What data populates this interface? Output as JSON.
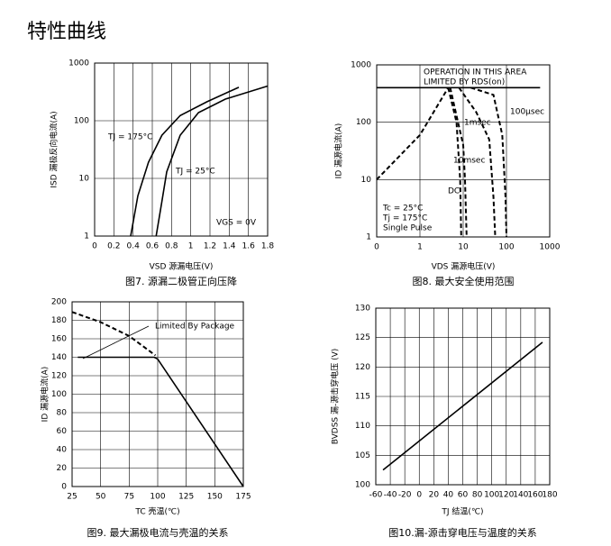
{
  "page_title": "特性曲线",
  "chart_data": [
    {
      "type": "line",
      "title": "图7. 源漏二极管正向压降",
      "xlabel": "VSD 源漏电压(V)",
      "ylabel": "ISD 漏极反向电流(A)",
      "xlim": [
        0,
        1.8
      ],
      "xticks": [
        0,
        0.2,
        0.4,
        0.6,
        0.8,
        1,
        1.2,
        1.4,
        1.6,
        1.8
      ],
      "ylim": [
        1,
        1000
      ],
      "yticks": [
        1,
        10,
        100,
        1000
      ],
      "yscale": "log",
      "grid": true,
      "annotations": [
        "TJ = 175°C",
        "TJ = 25°C",
        "VGS = 0V"
      ],
      "series": [
        {
          "color": "#000000",
          "x": [
            0.375,
            0.45,
            0.56,
            0.7,
            0.89,
            1.17,
            1.5
          ],
          "values": [
            1,
            5,
            19,
            56,
            123,
            214,
            380
          ]
        },
        {
          "color": "#000000",
          "x": [
            0.64,
            0.7,
            0.75,
            0.89,
            1.08,
            1.36,
            1.8
          ],
          "values": [
            1,
            4,
            13,
            56,
            138,
            237,
            400
          ]
        }
      ]
    },
    {
      "type": "line",
      "title": "图8. 最大安全使用范围",
      "xlabel": "VDS 漏源电压(V)",
      "ylabel": "ID 漏源电流(A)",
      "xlim": [
        0.1,
        1000
      ],
      "xticks": [
        {
          "value": 0.1,
          "label": "0"
        },
        1,
        10,
        100,
        1000
      ],
      "xscale": "log",
      "ylim": [
        1,
        1000
      ],
      "yticks": [
        1,
        10,
        100,
        1000
      ],
      "yscale": "log",
      "grid": true,
      "annotations": [
        "OPERATION IN THIS AREA",
        "LIMITED BY RDS(on)",
        "100μsec",
        "1msec",
        "10msec",
        "DC",
        "Tc = 25°C",
        "Tj = 175°C",
        "Single Pulse"
      ],
      "series": [
        {
          "color": "#000000",
          "x": [
            0.1,
            600
          ],
          "values": [
            400,
            400
          ]
        },
        {
          "color": "#000000",
          "dash": true,
          "x": [
            0.1,
            1,
            4.5
          ],
          "values": [
            10,
            60,
            400
          ]
        },
        {
          "color": "#000000",
          "dash": true,
          "x": [
            4.5,
            7,
            8.5,
            9
          ],
          "values": [
            400,
            100,
            10,
            1
          ]
        },
        {
          "color": "#000000",
          "dash": true,
          "x": [
            5,
            10,
            11,
            12
          ],
          "values": [
            400,
            40,
            10,
            1
          ]
        },
        {
          "color": "#000000",
          "dash": true,
          "x": [
            8,
            20,
            40,
            50,
            55
          ],
          "values": [
            400,
            150,
            50,
            5,
            1
          ]
        },
        {
          "color": "#000000",
          "dash": true,
          "x": [
            15,
            50,
            80,
            95,
            100
          ],
          "values": [
            400,
            300,
            60,
            5,
            1
          ]
        }
      ]
    },
    {
      "type": "line",
      "title": "图9. 最大漏极电流与壳温的关系",
      "xlabel": "TC 壳温(℃)",
      "ylabel": "ID 漏源电流(A)",
      "xlim": [
        25,
        175
      ],
      "xticks": [
        25,
        50,
        75,
        100,
        125,
        150,
        175
      ],
      "ylim": [
        0,
        200
      ],
      "yticks": [
        0,
        20,
        40,
        60,
        80,
        100,
        120,
        140,
        160,
        180,
        200
      ],
      "grid": true,
      "annotations": [
        "Limited By Package"
      ],
      "series": [
        {
          "color": "#000000",
          "x": [
            30,
            97,
            100,
            175
          ],
          "values": [
            140,
            140,
            138,
            0
          ]
        },
        {
          "color": "#000000",
          "dash": true,
          "x": [
            25,
            50,
            75,
            98
          ],
          "values": [
            189,
            178,
            163,
            142
          ]
        }
      ]
    },
    {
      "type": "line",
      "title": "图10.漏-源击穿电压与温度的关系",
      "xlabel": "TJ 结温(℃)",
      "ylabel": "BVDSS 漏-源击穿电压 (V)",
      "xlim": [
        -60,
        180
      ],
      "xticks": [
        -60,
        -40,
        -20,
        0,
        20,
        40,
        60,
        80,
        100,
        120,
        140,
        160,
        180
      ],
      "ylim": [
        100,
        130
      ],
      "yticks": [
        100,
        105,
        110,
        115,
        120,
        125,
        130
      ],
      "grid": true,
      "series": [
        {
          "color": "#000000",
          "x": [
            -50,
            170
          ],
          "values": [
            102.5,
            124.2
          ]
        }
      ]
    }
  ]
}
